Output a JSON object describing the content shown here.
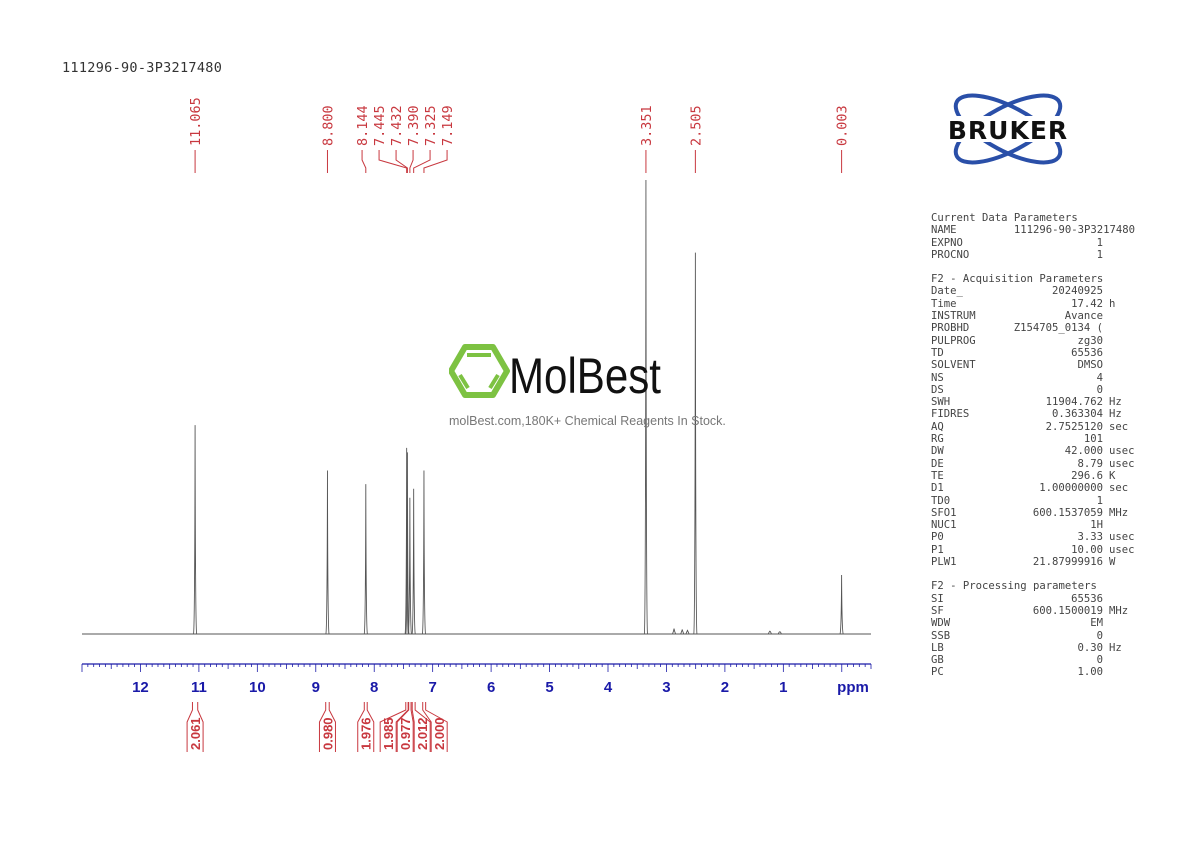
{
  "title": "111296-90-3P3217480",
  "colors": {
    "peak_labels": "#c8383f",
    "axis": "#1a1aa8",
    "spectrum": "#555555",
    "logo_blue": "#2a4fa8",
    "watermark_green": "#7dc242"
  },
  "watermark": {
    "brand": "MolBest",
    "tagline": "molBest.com,180K+ Chemical Reagents In Stock."
  },
  "logo": {
    "text": "BRUKER"
  },
  "chart_data": {
    "type": "line",
    "subtype": "1H NMR spectrum",
    "xlabel": "ppm",
    "xlim": [
      13.0,
      -0.5
    ],
    "x_reversed": true,
    "x_ticks": [
      12,
      11,
      10,
      9,
      8,
      7,
      6,
      5,
      4,
      3,
      2,
      1
    ],
    "x_tick_labels": [
      "12",
      "11",
      "10",
      "9",
      "8",
      "7",
      "6",
      "5",
      "4",
      "3",
      "2",
      "1"
    ],
    "grid": false,
    "peaks": [
      {
        "ppm": 11.065,
        "label": "11.065",
        "relative_intensity": 46
      },
      {
        "ppm": 8.8,
        "label": "8.800",
        "relative_intensity": 36
      },
      {
        "ppm": 8.144,
        "label": "8.144",
        "relative_intensity": 33
      },
      {
        "ppm": 7.445,
        "label": "7.445",
        "relative_intensity": 41
      },
      {
        "ppm": 7.432,
        "label": "7.432",
        "relative_intensity": 40
      },
      {
        "ppm": 7.39,
        "label": "7.390",
        "relative_intensity": 30
      },
      {
        "ppm": 7.325,
        "label": "7.325",
        "relative_intensity": 32
      },
      {
        "ppm": 7.149,
        "label": "7.149",
        "relative_intensity": 36
      },
      {
        "ppm": 3.351,
        "label": "3.351",
        "relative_intensity": 100
      },
      {
        "ppm": 2.505,
        "label": "2.505",
        "relative_intensity": 84
      },
      {
        "ppm": 0.003,
        "label": "0.003",
        "relative_intensity": 13
      }
    ],
    "minor_peaks": [
      {
        "ppm": 2.87,
        "relative_intensity": 1.2
      },
      {
        "ppm": 2.73,
        "relative_intensity": 1.0
      },
      {
        "ppm": 2.64,
        "relative_intensity": 0.8
      },
      {
        "ppm": 1.23,
        "relative_intensity": 0.6
      },
      {
        "ppm": 1.06,
        "relative_intensity": 0.4
      }
    ],
    "integrals": [
      {
        "from": 11.11,
        "to": 11.02,
        "value": "2.061"
      },
      {
        "from": 8.83,
        "to": 8.77,
        "value": "0.980"
      },
      {
        "from": 8.17,
        "to": 8.12,
        "value": "1.976"
      },
      {
        "from": 7.46,
        "to": 7.42,
        "value": "1.985"
      },
      {
        "from": 7.41,
        "to": 7.37,
        "value": "0.977"
      },
      {
        "from": 7.35,
        "to": 7.3,
        "value": "2.012"
      },
      {
        "from": 7.17,
        "to": 7.12,
        "value": "2.000"
      }
    ]
  },
  "parameters": {
    "current": {
      "heading": "Current Data Parameters",
      "rows": [
        {
          "k": "NAME",
          "v": "111296-90-3P3217480",
          "u": ""
        },
        {
          "k": "EXPNO",
          "v": "1",
          "u": ""
        },
        {
          "k": "PROCNO",
          "v": "1",
          "u": ""
        }
      ]
    },
    "acquisition": {
      "heading": "F2 - Acquisition Parameters",
      "rows": [
        {
          "k": "Date_",
          "v": "20240925",
          "u": ""
        },
        {
          "k": "Time",
          "v": "17.42",
          "u": "h"
        },
        {
          "k": "INSTRUM",
          "v": "Avance",
          "u": ""
        },
        {
          "k": "PROBHD",
          "v": "Z154705_0134 (",
          "u": ""
        },
        {
          "k": "PULPROG",
          "v": "zg30",
          "u": ""
        },
        {
          "k": "TD",
          "v": "65536",
          "u": ""
        },
        {
          "k": "SOLVENT",
          "v": "DMSO",
          "u": ""
        },
        {
          "k": "NS",
          "v": "4",
          "u": ""
        },
        {
          "k": "DS",
          "v": "0",
          "u": ""
        },
        {
          "k": "SWH",
          "v": "11904.762",
          "u": "Hz"
        },
        {
          "k": "FIDRES",
          "v": "0.363304",
          "u": "Hz"
        },
        {
          "k": "AQ",
          "v": "2.7525120",
          "u": "sec"
        },
        {
          "k": "RG",
          "v": "101",
          "u": ""
        },
        {
          "k": "DW",
          "v": "42.000",
          "u": "usec"
        },
        {
          "k": "DE",
          "v": "8.79",
          "u": "usec"
        },
        {
          "k": "TE",
          "v": "296.6",
          "u": "K"
        },
        {
          "k": "D1",
          "v": "1.00000000",
          "u": "sec"
        },
        {
          "k": "TD0",
          "v": "1",
          "u": ""
        },
        {
          "k": "SFO1",
          "v": "600.1537059",
          "u": "MHz"
        },
        {
          "k": "NUC1",
          "v": "1H",
          "u": ""
        },
        {
          "k": "P0",
          "v": "3.33",
          "u": "usec"
        },
        {
          "k": "P1",
          "v": "10.00",
          "u": "usec"
        },
        {
          "k": "PLW1",
          "v": "21.87999916",
          "u": "W"
        }
      ]
    },
    "processing": {
      "heading": "F2 - Processing parameters",
      "rows": [
        {
          "k": "SI",
          "v": "65536",
          "u": ""
        },
        {
          "k": "SF",
          "v": "600.1500019",
          "u": "MHz"
        },
        {
          "k": "WDW",
          "v": "EM",
          "u": ""
        },
        {
          "k": "SSB",
          "v": "0",
          "u": ""
        },
        {
          "k": "LB",
          "v": "0.30",
          "u": "Hz"
        },
        {
          "k": "GB",
          "v": "0",
          "u": ""
        },
        {
          "k": "PC",
          "v": "1.00",
          "u": ""
        }
      ]
    }
  }
}
